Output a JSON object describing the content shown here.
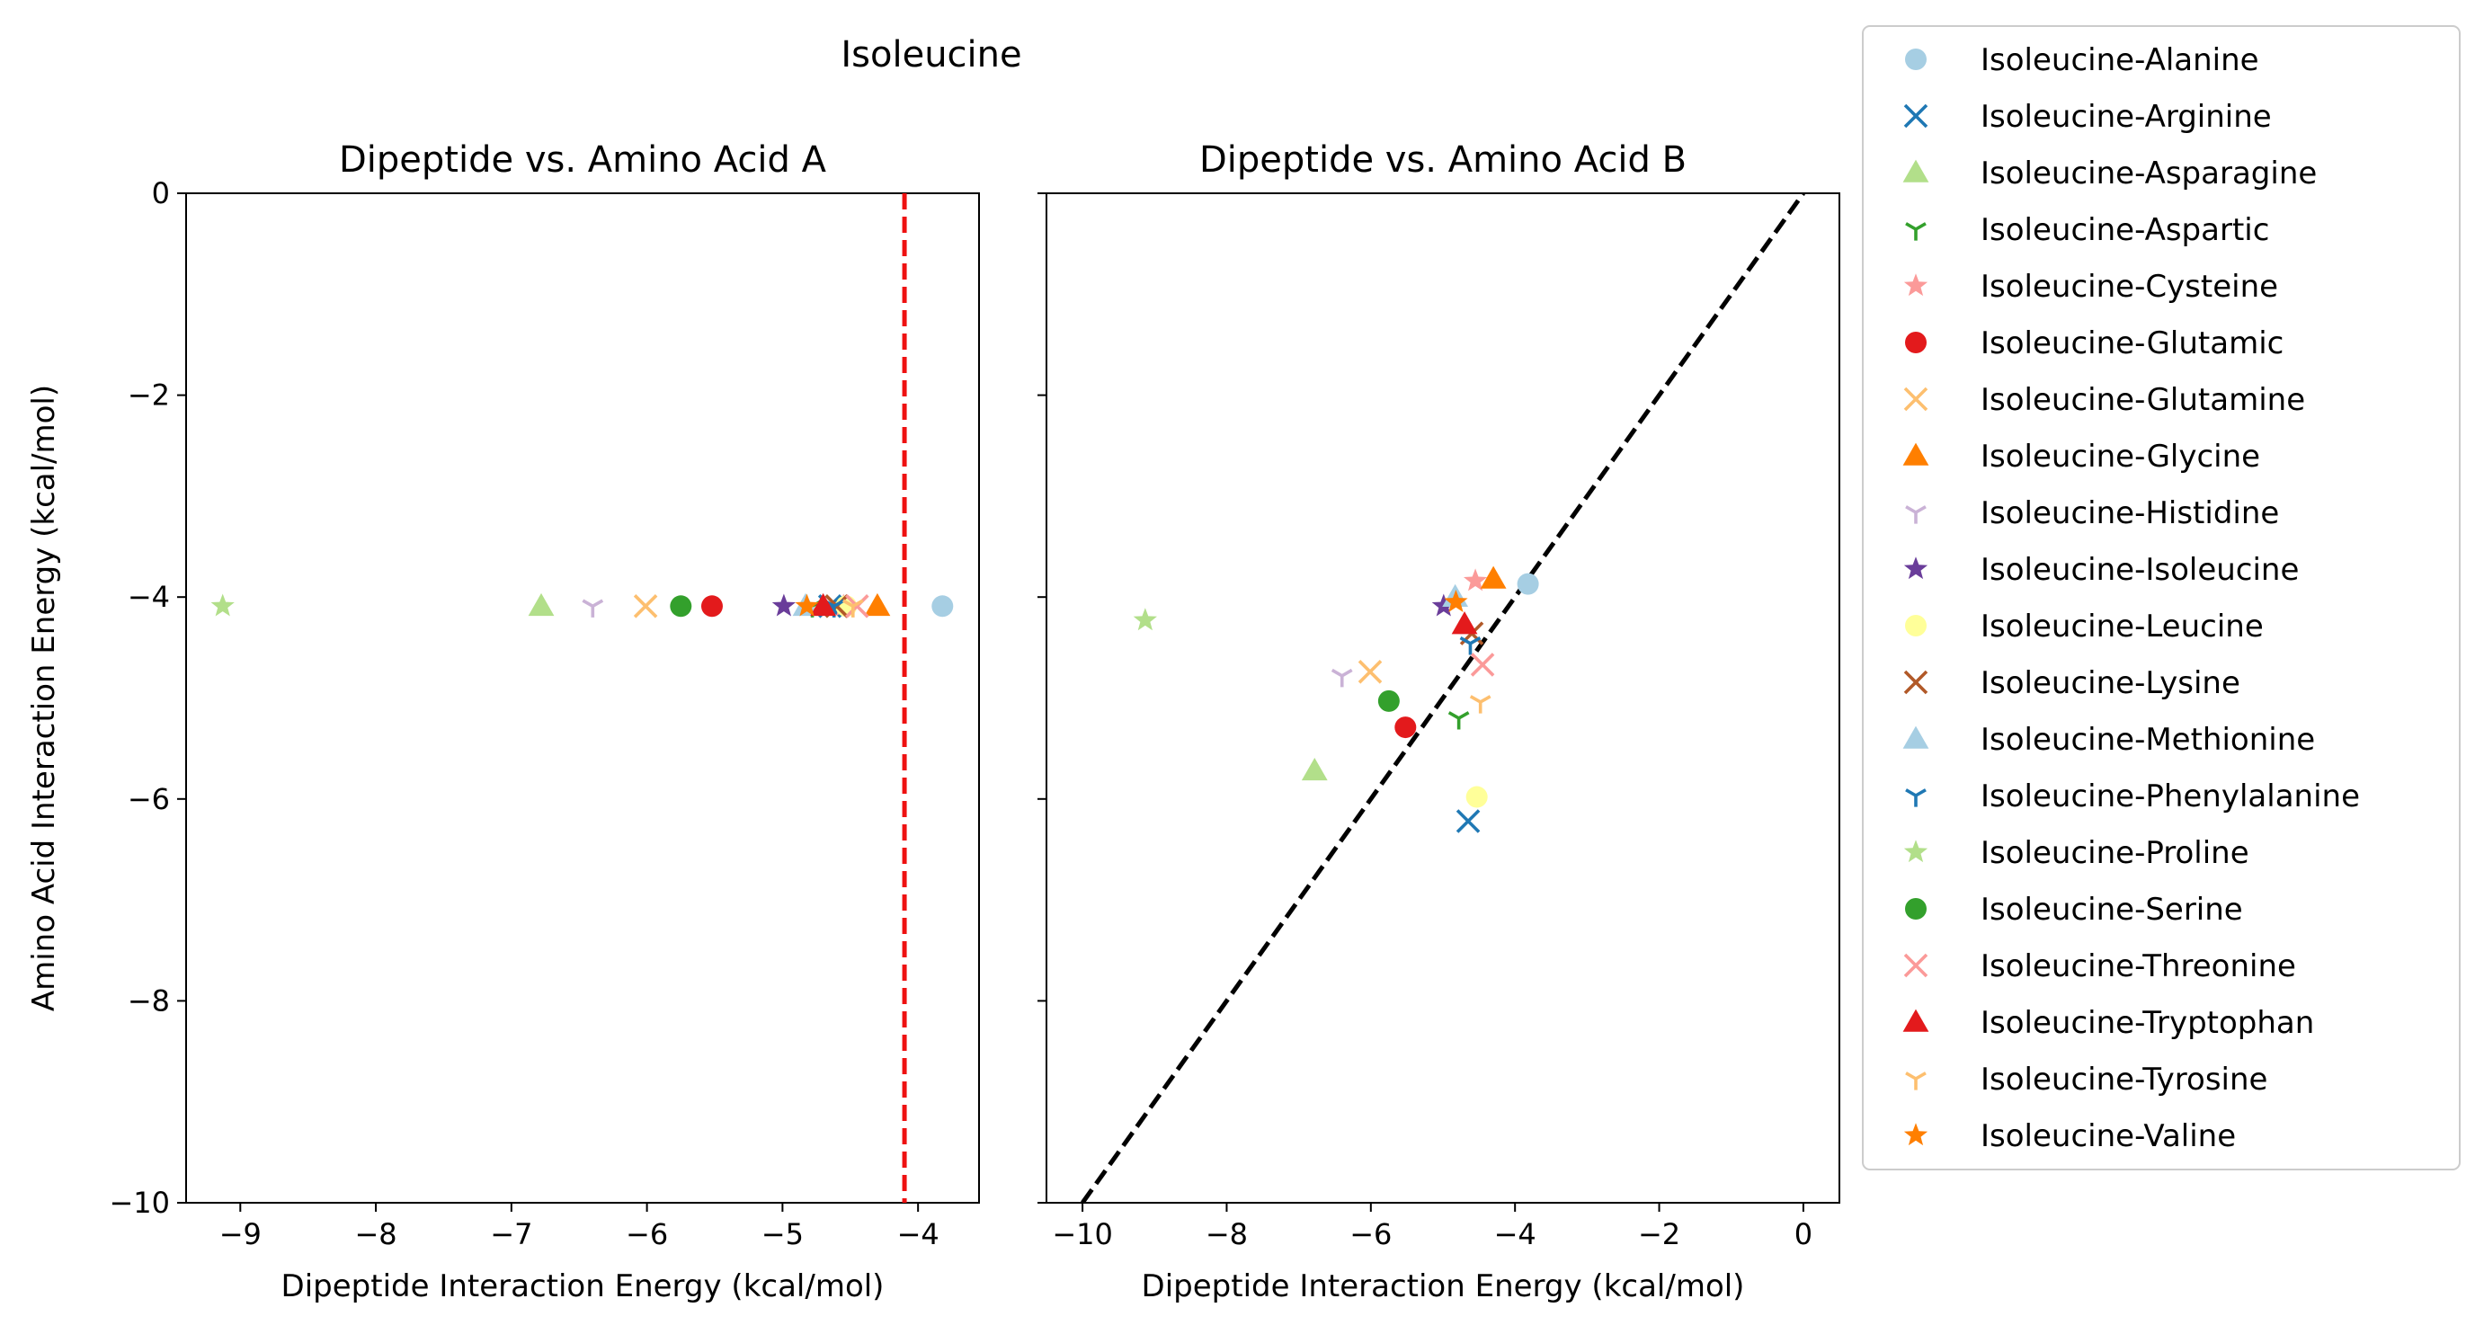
{
  "suptitle": "Isoleucine",
  "chart_data": [
    {
      "type": "scatter",
      "title": "Dipeptide vs. Amino Acid A",
      "xlabel": "Dipeptide Interaction Energy (kcal/mol)",
      "ylabel": "Amino Acid Interaction Energy (kcal/mol)",
      "xlim": [
        -9.4,
        -3.55
      ],
      "ylim": [
        -10,
        0
      ],
      "xticks": [
        -9,
        -8,
        -7,
        -6,
        -5,
        -4
      ],
      "yticks": [
        0,
        -2,
        -4,
        -6,
        -8,
        -10
      ],
      "reference_line": {
        "kind": "vertical",
        "x": -4.1,
        "style": "dashed",
        "color": "#ee1111"
      },
      "series": [
        {
          "name": "Isoleucine-Alanine",
          "x": -3.82,
          "y": -4.09
        },
        {
          "name": "Isoleucine-Arginine",
          "x": -4.65,
          "y": -4.09
        },
        {
          "name": "Isoleucine-Asparagine",
          "x": -6.78,
          "y": -4.09
        },
        {
          "name": "Isoleucine-Aspartic",
          "x": -4.78,
          "y": -4.09
        },
        {
          "name": "Isoleucine-Cysteine",
          "x": -4.55,
          "y": -4.09
        },
        {
          "name": "Isoleucine-Glutamic",
          "x": -5.52,
          "y": -4.09
        },
        {
          "name": "Isoleucine-Glutamine",
          "x": -6.01,
          "y": -4.09
        },
        {
          "name": "Isoleucine-Glycine",
          "x": -4.3,
          "y": -4.09
        },
        {
          "name": "Isoleucine-Histidine",
          "x": -6.4,
          "y": -4.09
        },
        {
          "name": "Isoleucine-Isoleucine",
          "x": -4.99,
          "y": -4.09
        },
        {
          "name": "Isoleucine-Leucine",
          "x": -4.53,
          "y": -4.09
        },
        {
          "name": "Isoleucine-Lysine",
          "x": -4.6,
          "y": -4.09
        },
        {
          "name": "Isoleucine-Methionine",
          "x": -4.83,
          "y": -4.09
        },
        {
          "name": "Isoleucine-Phenylalanine",
          "x": -4.62,
          "y": -4.09
        },
        {
          "name": "Isoleucine-Proline",
          "x": -9.13,
          "y": -4.09
        },
        {
          "name": "Isoleucine-Serine",
          "x": -5.75,
          "y": -4.09
        },
        {
          "name": "Isoleucine-Threonine",
          "x": -4.45,
          "y": -4.09
        },
        {
          "name": "Isoleucine-Tryptophan",
          "x": -4.7,
          "y": -4.09
        },
        {
          "name": "Isoleucine-Tyrosine",
          "x": -4.48,
          "y": -4.09
        },
        {
          "name": "Isoleucine-Valine",
          "x": -4.82,
          "y": -4.09
        }
      ]
    },
    {
      "type": "scatter",
      "title": "Dipeptide vs. Amino Acid B",
      "xlabel": "Dipeptide Interaction Energy (kcal/mol)",
      "ylabel": "",
      "xlim": [
        -10.5,
        0.5
      ],
      "ylim": [
        -10,
        0
      ],
      "xticks": [
        -10,
        -8,
        -6,
        -4,
        -2,
        0
      ],
      "yticks": [
        0,
        -2,
        -4,
        -6,
        -8,
        -10
      ],
      "reference_line": {
        "kind": "diagonal",
        "points": [
          [
            -10,
            -10
          ],
          [
            0,
            0
          ]
        ],
        "style": "dashed",
        "color": "#000000"
      },
      "series": [
        {
          "name": "Isoleucine-Alanine",
          "x": -3.82,
          "y": -3.87
        },
        {
          "name": "Isoleucine-Arginine",
          "x": -4.65,
          "y": -6.22
        },
        {
          "name": "Isoleucine-Asparagine",
          "x": -6.78,
          "y": -5.72
        },
        {
          "name": "Isoleucine-Aspartic",
          "x": -4.78,
          "y": -5.2
        },
        {
          "name": "Isoleucine-Cysteine",
          "x": -4.55,
          "y": -3.84
        },
        {
          "name": "Isoleucine-Glutamic",
          "x": -5.52,
          "y": -5.29
        },
        {
          "name": "Isoleucine-Glutamine",
          "x": -6.01,
          "y": -4.74
        },
        {
          "name": "Isoleucine-Glycine",
          "x": -4.3,
          "y": -3.82
        },
        {
          "name": "Isoleucine-Histidine",
          "x": -6.4,
          "y": -4.78
        },
        {
          "name": "Isoleucine-Isoleucine",
          "x": -4.99,
          "y": -4.09
        },
        {
          "name": "Isoleucine-Leucine",
          "x": -4.53,
          "y": -5.98
        },
        {
          "name": "Isoleucine-Lysine",
          "x": -4.6,
          "y": -4.36
        },
        {
          "name": "Isoleucine-Methionine",
          "x": -4.83,
          "y": -4.0
        },
        {
          "name": "Isoleucine-Phenylalanine",
          "x": -4.62,
          "y": -4.46
        },
        {
          "name": "Isoleucine-Proline",
          "x": -9.13,
          "y": -4.23
        },
        {
          "name": "Isoleucine-Serine",
          "x": -5.75,
          "y": -5.03
        },
        {
          "name": "Isoleucine-Threonine",
          "x": -4.45,
          "y": -4.67
        },
        {
          "name": "Isoleucine-Tryptophan",
          "x": -4.7,
          "y": -4.27
        },
        {
          "name": "Isoleucine-Tyrosine",
          "x": -4.48,
          "y": -5.04
        },
        {
          "name": "Isoleucine-Valine",
          "x": -4.82,
          "y": -4.05
        }
      ]
    }
  ],
  "legend": {
    "placement": "outside-right",
    "items": [
      {
        "label": "Isoleucine-Alanine",
        "marker": "circle",
        "color": "#a6cee3"
      },
      {
        "label": "Isoleucine-Arginine",
        "marker": "x",
        "color": "#1f78b4"
      },
      {
        "label": "Isoleucine-Asparagine",
        "marker": "triangle",
        "color": "#b2df8a"
      },
      {
        "label": "Isoleucine-Aspartic",
        "marker": "tri-down",
        "color": "#33a02c"
      },
      {
        "label": "Isoleucine-Cysteine",
        "marker": "star",
        "color": "#fb9a99"
      },
      {
        "label": "Isoleucine-Glutamic",
        "marker": "circle",
        "color": "#e31a1c"
      },
      {
        "label": "Isoleucine-Glutamine",
        "marker": "x",
        "color": "#fdbf6f"
      },
      {
        "label": "Isoleucine-Glycine",
        "marker": "triangle",
        "color": "#ff7f00"
      },
      {
        "label": "Isoleucine-Histidine",
        "marker": "tri-down",
        "color": "#cab2d6"
      },
      {
        "label": "Isoleucine-Isoleucine",
        "marker": "star",
        "color": "#6a3d9a"
      },
      {
        "label": "Isoleucine-Leucine",
        "marker": "circle",
        "color": "#ffff99"
      },
      {
        "label": "Isoleucine-Lysine",
        "marker": "x",
        "color": "#b15928"
      },
      {
        "label": "Isoleucine-Methionine",
        "marker": "triangle",
        "color": "#a6cee3"
      },
      {
        "label": "Isoleucine-Phenylalanine",
        "marker": "tri-down",
        "color": "#1f78b4"
      },
      {
        "label": "Isoleucine-Proline",
        "marker": "star",
        "color": "#b2df8a"
      },
      {
        "label": "Isoleucine-Serine",
        "marker": "circle",
        "color": "#33a02c"
      },
      {
        "label": "Isoleucine-Threonine",
        "marker": "x",
        "color": "#fb9a99"
      },
      {
        "label": "Isoleucine-Tryptophan",
        "marker": "triangle",
        "color": "#e31a1c"
      },
      {
        "label": "Isoleucine-Tyrosine",
        "marker": "tri-down",
        "color": "#fdbf6f"
      },
      {
        "label": "Isoleucine-Valine",
        "marker": "star",
        "color": "#ff7f00"
      }
    ]
  }
}
